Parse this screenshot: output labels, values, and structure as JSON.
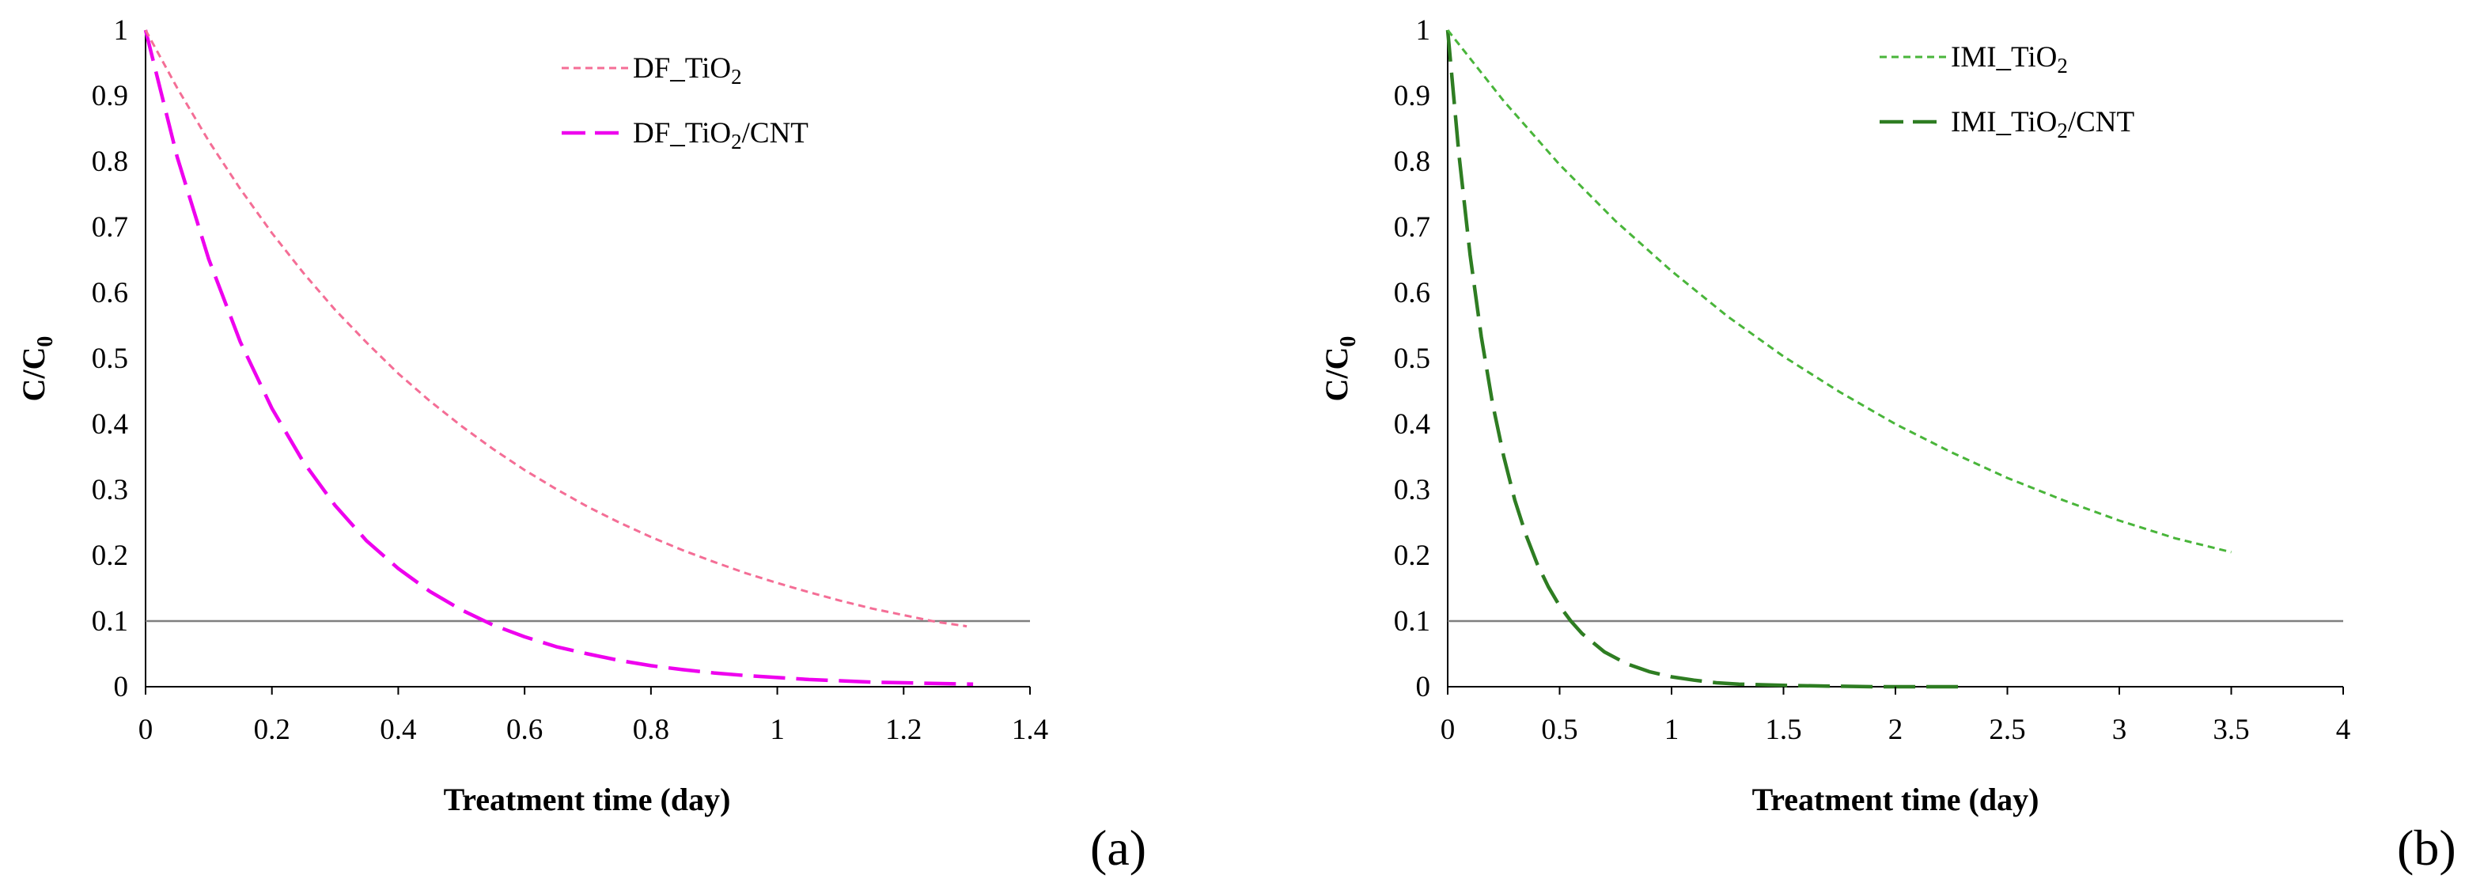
{
  "chart_data": [
    {
      "type": "line",
      "panel_label": "(a)",
      "xlabel": "Treatment time (day)",
      "ylabel_main": "C/C",
      "ylabel_sub": "0",
      "xlim": [
        0,
        1.4
      ],
      "ylim": [
        0,
        1
      ],
      "xticks": [
        "0",
        "0.2",
        "0.4",
        "0.6",
        "0.8",
        "1",
        "1.2",
        "1.4"
      ],
      "yticks": [
        "0",
        "0.1",
        "0.2",
        "0.3",
        "0.4",
        "0.5",
        "0.6",
        "0.7",
        "0.8",
        "0.9",
        "1"
      ],
      "reference_line_y": 0.1,
      "grid": false,
      "legend_position": "top-right",
      "series": [
        {
          "name": "DF_TiO2/CNT",
          "label_parts": [
            "DF_TiO",
            "2",
            "/CNT"
          ],
          "color": "#EE00EE",
          "style": "long-dash",
          "x": [
            0,
            0.05,
            0.1,
            0.15,
            0.2,
            0.25,
            0.3,
            0.35,
            0.4,
            0.45,
            0.5,
            0.55,
            0.6,
            0.65,
            0.7,
            0.75,
            0.8,
            0.85,
            0.9,
            0.95,
            1.0,
            1.05,
            1.1,
            1.15,
            1.2,
            1.25,
            1.31
          ],
          "y": [
            1.0,
            0.807,
            0.651,
            0.525,
            0.424,
            0.342,
            0.276,
            0.222,
            0.18,
            0.145,
            0.117,
            0.094,
            0.076,
            0.061,
            0.05,
            0.04,
            0.032,
            0.026,
            0.021,
            0.017,
            0.014,
            0.011,
            0.009,
            0.007,
            0.006,
            0.005,
            0.004
          ]
        },
        {
          "name": "DF_TiO2",
          "label_parts": [
            "DF_TiO",
            "2",
            ""
          ],
          "color": "#F46E96",
          "style": "short-dash",
          "x": [
            0,
            0.05,
            0.1,
            0.15,
            0.2,
            0.25,
            0.3,
            0.35,
            0.4,
            0.45,
            0.5,
            0.55,
            0.6,
            0.65,
            0.7,
            0.75,
            0.8,
            0.85,
            0.9,
            0.95,
            1.0,
            1.05,
            1.1,
            1.15,
            1.2,
            1.25,
            1.3
          ],
          "y": [
            1.0,
            0.912,
            0.831,
            0.758,
            0.691,
            0.63,
            0.574,
            0.524,
            0.477,
            0.435,
            0.397,
            0.362,
            0.33,
            0.301,
            0.274,
            0.25,
            0.228,
            0.208,
            0.19,
            0.173,
            0.158,
            0.144,
            0.131,
            0.119,
            0.109,
            0.099,
            0.092
          ]
        }
      ]
    },
    {
      "type": "line",
      "panel_label": "(b)",
      "xlabel": "Treatment time (day)",
      "ylabel_main": "C/C",
      "ylabel_sub": "0",
      "xlim": [
        0,
        4
      ],
      "ylim": [
        0,
        1
      ],
      "xticks": [
        "0",
        "0.5",
        "1",
        "1.5",
        "2",
        "2.5",
        "3",
        "3.5",
        "4"
      ],
      "yticks": [
        "0",
        "0.1",
        "0.2",
        "0.3",
        "0.4",
        "0.5",
        "0.6",
        "0.7",
        "0.8",
        "0.9",
        "1"
      ],
      "reference_line_y": 0.1,
      "grid": false,
      "legend_position": "top-right",
      "series": [
        {
          "name": "IMI_TiO2/CNT",
          "label_parts": [
            "IMI_TiO",
            "2",
            "/CNT"
          ],
          "color": "#2E7D22",
          "style": "long-dash",
          "x": [
            0,
            0.05,
            0.1,
            0.15,
            0.2,
            0.25,
            0.3,
            0.35,
            0.4,
            0.45,
            0.5,
            0.55,
            0.6,
            0.7,
            0.8,
            0.9,
            1.0,
            1.1,
            1.2,
            1.3,
            1.4,
            1.5,
            1.7,
            1.9,
            2.1,
            2.3
          ],
          "y": [
            1.0,
            0.811,
            0.658,
            0.533,
            0.432,
            0.351,
            0.284,
            0.231,
            0.187,
            0.152,
            0.123,
            0.1,
            0.081,
            0.053,
            0.035,
            0.023,
            0.015,
            0.01,
            0.006,
            0.004,
            0.003,
            0.002,
            0.001,
            0.0,
            0.0,
            0.0
          ]
        },
        {
          "name": "IMI_TiO2",
          "label_parts": [
            "IMI_TiO",
            "2",
            ""
          ],
          "color": "#49B53A",
          "style": "short-dash",
          "x": [
            0,
            0.25,
            0.5,
            0.75,
            1.0,
            1.25,
            1.5,
            1.75,
            2.0,
            2.25,
            2.5,
            2.75,
            3.0,
            3.25,
            3.5
          ],
          "y": [
            1.0,
            0.892,
            0.795,
            0.709,
            0.633,
            0.564,
            0.503,
            0.449,
            0.4,
            0.357,
            0.318,
            0.284,
            0.253,
            0.226,
            0.205
          ]
        }
      ]
    }
  ]
}
